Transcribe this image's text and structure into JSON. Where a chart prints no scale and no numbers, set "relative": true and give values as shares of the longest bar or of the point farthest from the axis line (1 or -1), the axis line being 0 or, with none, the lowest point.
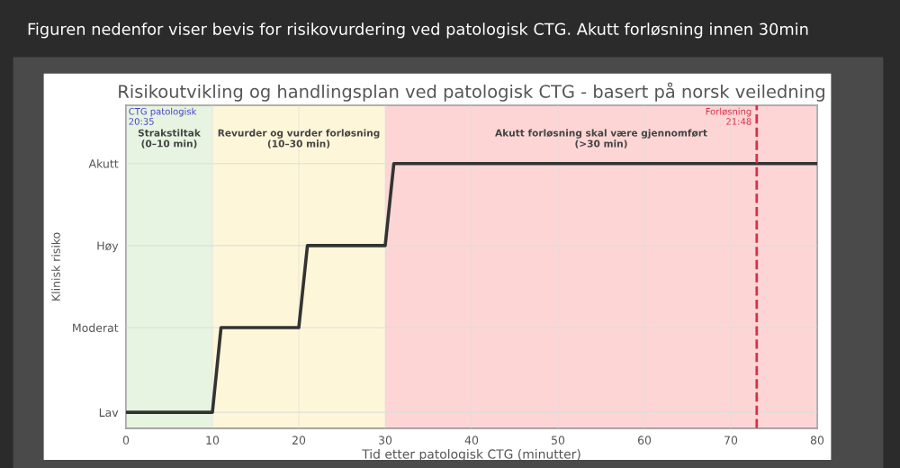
{
  "chart_data": {
    "type": "line",
    "title": "Risikoutvikling og handlingsplan ved patologisk CTG - basert på norsk veiledning",
    "xlabel": "Tid etter patologisk CTG (minutter)",
    "x": [
      0,
      10,
      11,
      20,
      21,
      30,
      31,
      80
    ],
    "series": [
      {
        "color": "#333333",
        "values": [
          0.06,
          0.06,
          0.38,
          0.38,
          0.69,
          0.69,
          1,
          1
        ]
      }
    ],
    "relative": true,
    "xlim": [
      0,
      80
    ],
    "xticks": [
      0,
      10,
      20,
      30,
      40,
      50,
      60,
      70,
      80
    ],
    "bands": [
      {
        "axis": "x",
        "from": 0,
        "to": 10,
        "label": "Strakstiltak\n(0–10 min)",
        "color": "#e6f4e1"
      },
      {
        "axis": "x",
        "from": 10,
        "to": 30,
        "label": "Revurder og vurder forløsning\n(10–30 min)",
        "color": "#fdf6d8"
      },
      {
        "axis": "x",
        "from": 30,
        "to": 80,
        "label": "Akutt forløsning skal være gjennomført\n(>30 min)",
        "color": "#fdd5d5"
      }
    ],
    "ref_lines": [
      {
        "axis": "x",
        "value": 73,
        "color": "#d9304a",
        "line_style": "dashed"
      }
    ],
    "annotations": [
      {
        "text": "CTG patologisk\n20:35",
        "x": 0
      },
      {
        "text": "Forløsning\n21:48",
        "x": 73
      },
      "Figuren nedenfor viser bevis for risikovurdering ved patologisk CTG. Akutt forløsning innen 30min",
      "Lav",
      "Moderat",
      "Høy",
      "Akutt",
      "Klinisk risiko"
    ],
    "grid": true,
    "marker": "none",
    "line_style": "solid"
  }
}
